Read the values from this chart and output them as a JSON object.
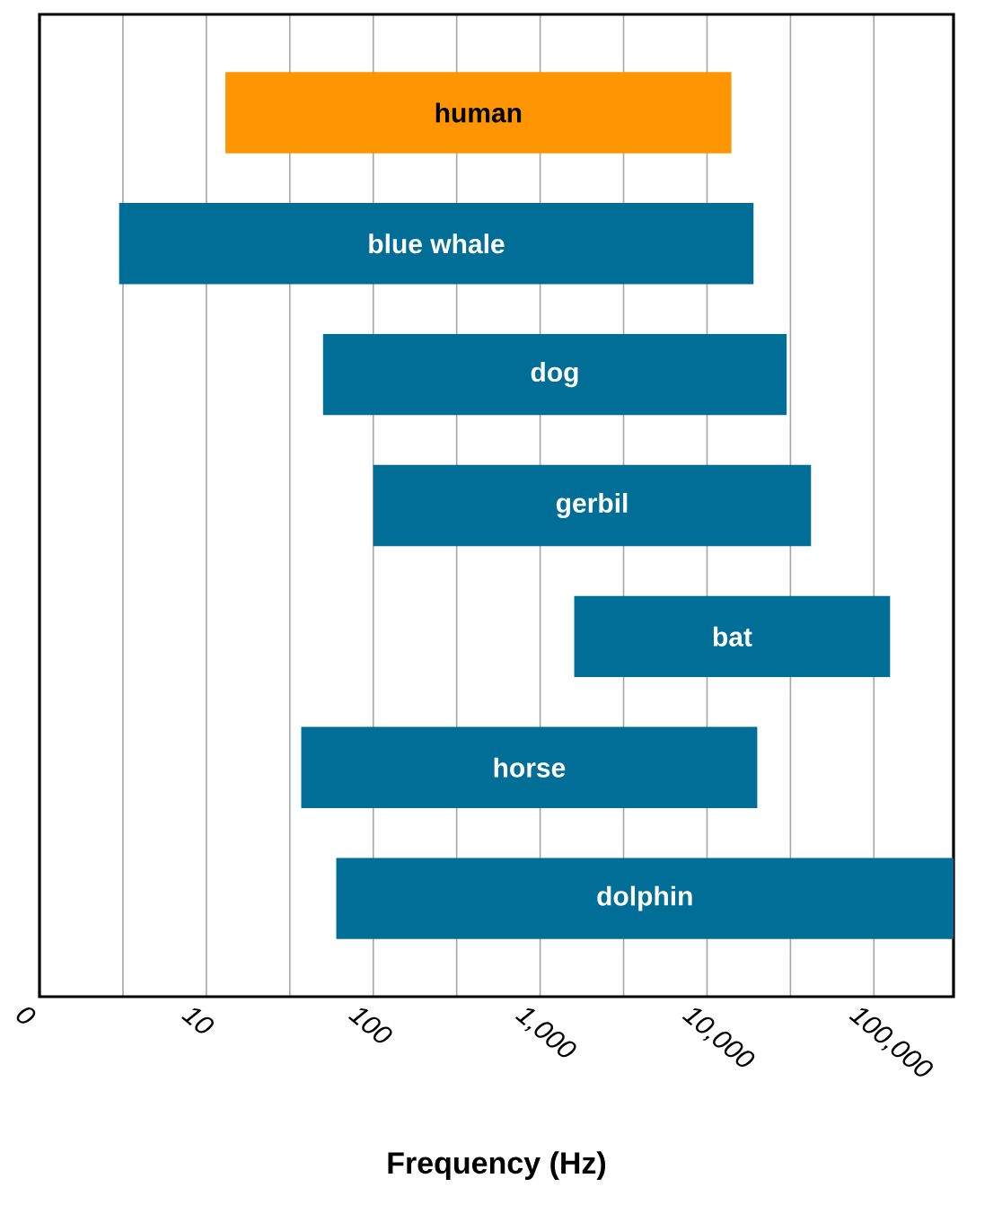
{
  "chart_data": {
    "type": "bar",
    "orientation": "horizontal",
    "xlabel": "Frequency (Hz)",
    "log": "x",
    "categories": [
      "human",
      "blue whale",
      "dog",
      "gerbil",
      "bat",
      "horse",
      "dolphin"
    ],
    "base": [
      13,
      3,
      50,
      100,
      1600,
      37,
      60
    ],
    "values": [
      13987,
      18997,
      29950,
      41900,
      123400,
      19963,
      299940
    ],
    "colors": [
      "#ff9500",
      "#006e96",
      "#006e96",
      "#006e96",
      "#006e96",
      "#006e96",
      "#006e96"
    ],
    "xlim": [
      0,
      300000
    ],
    "xticks": [
      0,
      {
        "value": 3.162,
        "label": null
      },
      10,
      {
        "value": 31.62,
        "label": null
      },
      100,
      {
        "value": 316.2,
        "label": null
      },
      {
        "value": 1000,
        "label": "1,000"
      },
      {
        "value": 3162,
        "label": null
      },
      {
        "value": 10000,
        "label": "10,000"
      },
      {
        "value": 31623,
        "label": null
      },
      {
        "value": 100000,
        "label": "100,000"
      }
    ],
    "grid": "x",
    "tick_labels": "x"
  }
}
